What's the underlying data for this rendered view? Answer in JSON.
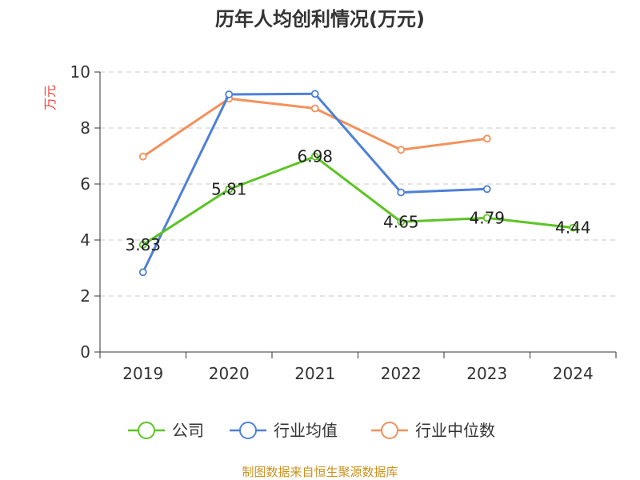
{
  "chart_data": {
    "type": "line",
    "title": "历年人均创利情况(万元)",
    "ylabel": "万元",
    "xlabel": "",
    "categories": [
      "2019",
      "2020",
      "2021",
      "2022",
      "2023",
      "2024"
    ],
    "ylim": [
      0,
      10
    ],
    "yticks": [
      0,
      2,
      4,
      6,
      8,
      10
    ],
    "grid": true,
    "legend_position": "bottom",
    "series": [
      {
        "name": "公司",
        "color": "#5cc423",
        "values": [
          3.83,
          5.81,
          6.98,
          4.65,
          4.79,
          4.44
        ],
        "labels": [
          "3.83",
          "5.81",
          "6.98",
          "4.65",
          "4.79",
          "4.44"
        ]
      },
      {
        "name": "行业均值",
        "color": "#4e80d9",
        "values": [
          2.85,
          9.2,
          9.22,
          5.7,
          5.82,
          null
        ]
      },
      {
        "name": "行业中位数",
        "color": "#f5905a",
        "values": [
          6.98,
          9.05,
          8.7,
          7.22,
          7.62,
          null
        ]
      }
    ],
    "source": "制图数据来自恒生聚源数据库"
  }
}
